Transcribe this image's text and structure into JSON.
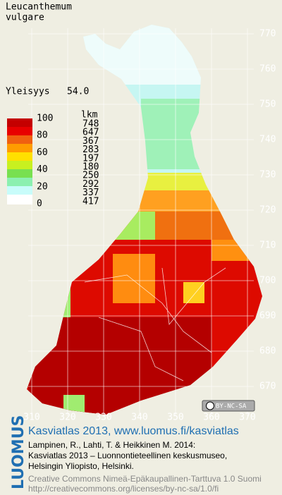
{
  "header": {
    "species": [
      "Leucanthemum",
      "vulgare"
    ],
    "frequency_label": "Yleisyys",
    "frequency_value": "54.0"
  },
  "legend": {
    "scale": [
      "100",
      "80",
      "60",
      "40",
      "20",
      "0"
    ],
    "count_header": "lkm",
    "counts": [
      "748",
      "647",
      "367",
      "283",
      "197",
      "180",
      "250",
      "292",
      "337",
      "417"
    ]
  },
  "axes": {
    "x": [
      "310",
      "320",
      "330",
      "340",
      "350",
      "360",
      "370"
    ],
    "y": [
      "770",
      "760",
      "750",
      "740",
      "730",
      "720",
      "710",
      "700",
      "690",
      "680",
      "670"
    ]
  },
  "badge": "BY-NC-SA",
  "credits": {
    "logo": "LUOMUS",
    "link": "Kasviatlas 2013, www.luomus.fi/kasviatlas",
    "citation": [
      "Lampinen, R., Lahti, T. & Heikkinen M. 2014:",
      "Kasviatlas 2013 – Luonnontieteellinen keskusmuseo,",
      "Helsingin Yliopisto, Helsinki."
    ],
    "license": [
      "Creative Commons Nimeä-Epäkaupallinen-Tarttuva 1.0 Suomi",
      "http://creativecommons.org/licenses/by-nc-sa/1.0/fi"
    ]
  }
}
